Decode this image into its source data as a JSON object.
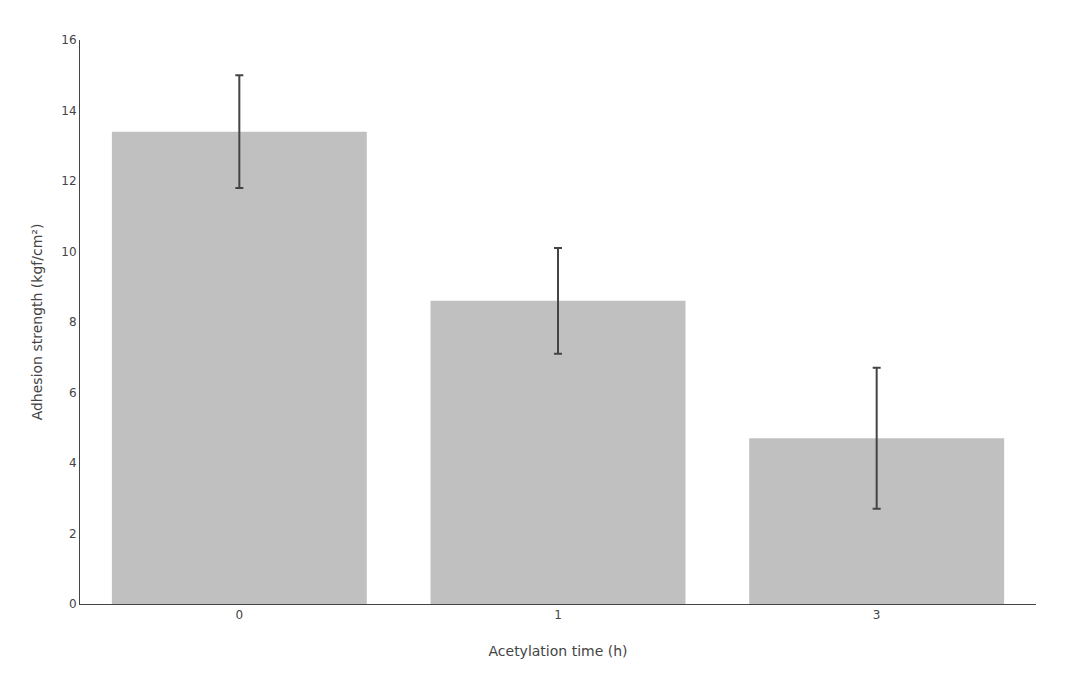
{
  "chart_data": {
    "type": "bar",
    "categories": [
      "0",
      "1",
      "3"
    ],
    "values": [
      13.4,
      8.6,
      4.7
    ],
    "errors": [
      1.6,
      1.5,
      2.0
    ],
    "color": "#c0c0c0",
    "xlabel": "Acetylation time (h)",
    "ylabel": "Adhesion strength (kgf/cm²)",
    "ylim": [
      0,
      16
    ],
    "yticks": [
      0,
      2,
      4,
      6,
      8,
      10,
      12,
      14,
      16
    ],
    "grid": false
  }
}
